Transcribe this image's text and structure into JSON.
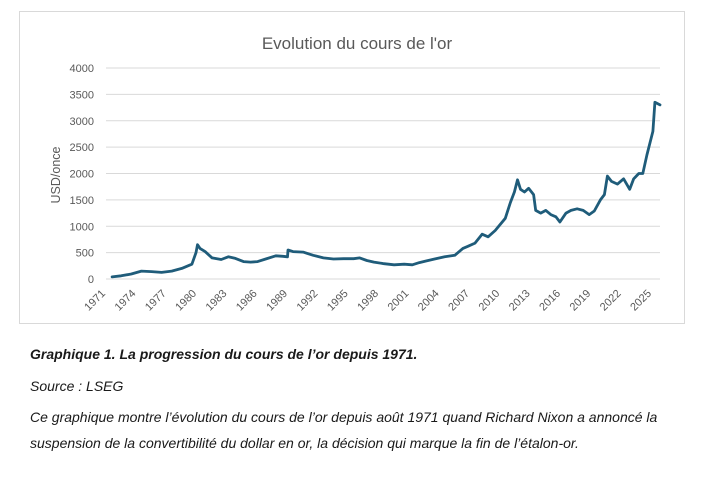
{
  "chart_data": {
    "type": "line",
    "title": "Evolution du cours de l'or",
    "xlabel": "",
    "ylabel": "USD/once",
    "ylim": [
      0,
      4000
    ],
    "yticks": [
      0,
      500,
      1000,
      1500,
      2000,
      2500,
      3000,
      3500,
      4000
    ],
    "xlim": [
      1971,
      2025.8
    ],
    "xticks": [
      "1971",
      "1974",
      "1977",
      "1980",
      "1983",
      "1986",
      "1989",
      "1992",
      "1995",
      "1998",
      "2001",
      "2004",
      "2007",
      "2010",
      "2013",
      "2016",
      "2019",
      "2022",
      "2025"
    ],
    "grid": "horizontal",
    "color": "#1f5c7a",
    "series": [
      {
        "x": [
          1971.6,
          1972.5,
          1973.5,
          1974.5,
          1975.5,
          1976.5,
          1977.5,
          1978.5,
          1979.5,
          1979.9,
          1980.05,
          1980.3,
          1980.8,
          1981.5,
          1982.4,
          1983.1,
          1983.8,
          1984.6,
          1985.3,
          1986.0,
          1986.8,
          1987.8,
          1988.5,
          1988.95,
          1989.0,
          1989.5,
          1990.5,
          1991.5,
          1992.5,
          1993.5,
          1994.5,
          1995.5,
          1996.1,
          1996.8,
          1997.5,
          1998.5,
          1999.5,
          2000.5,
          2001.3,
          2002.0,
          2002.6,
          2003.5,
          2004.5,
          2005.5,
          2006.3,
          2006.8,
          2007.5,
          2008.2,
          2008.8,
          2009.5,
          2010.5,
          2011.0,
          2011.4,
          2011.7,
          2012.0,
          2012.4,
          2012.8,
          2013.3,
          2013.5,
          2014.0,
          2014.5,
          2015.0,
          2015.5,
          2015.9,
          2016.5,
          2017.0,
          2017.6,
          2018.2,
          2018.8,
          2019.3,
          2019.9,
          2020.3,
          2020.6,
          2021.0,
          2021.6,
          2022.2,
          2022.8,
          2023.2,
          2023.7,
          2024.1,
          2024.5,
          2024.9,
          2025.1,
          2025.3,
          2025.8
        ],
        "y": [
          40,
          60,
          95,
          150,
          140,
          125,
          150,
          200,
          280,
          500,
          650,
          580,
          520,
          400,
          370,
          420,
          390,
          330,
          320,
          330,
          380,
          440,
          430,
          420,
          550,
          520,
          510,
          450,
          400,
          380,
          385,
          385,
          400,
          350,
          320,
          290,
          270,
          280,
          270,
          310,
          340,
          380,
          420,
          450,
          580,
          620,
          680,
          850,
          800,
          920,
          1150,
          1450,
          1650,
          1880,
          1700,
          1650,
          1720,
          1600,
          1300,
          1250,
          1300,
          1220,
          1180,
          1080,
          1250,
          1300,
          1330,
          1300,
          1220,
          1290,
          1500,
          1600,
          1950,
          1850,
          1800,
          1900,
          1700,
          1900,
          2000,
          2000,
          2350,
          2650,
          2800,
          3350,
          3300
        ]
      }
    ]
  },
  "caption": {
    "title": "Graphique 1. La progression du cours de l’or depuis 1971.",
    "source": "Source : LSEG",
    "description": "Ce graphique montre l’évolution du cours de l’or depuis août 1971 quand Richard Nixon a annoncé la suspension de la convertibilité du dollar en or, la décision qui marque la fin de l’étalon-or."
  }
}
